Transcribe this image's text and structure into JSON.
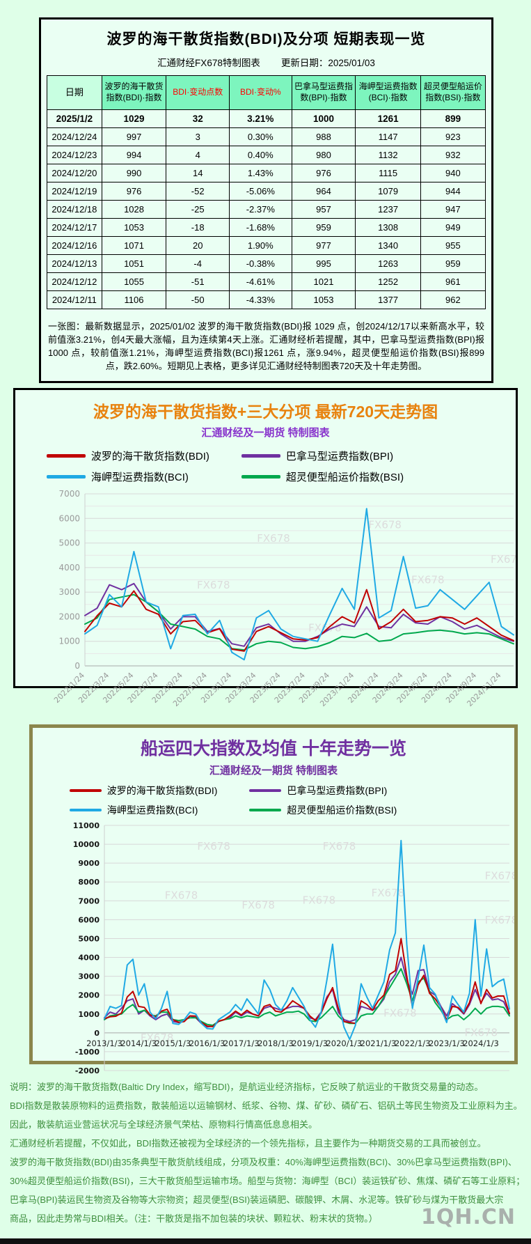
{
  "app": {
    "brand_watermark": "1QH.CN",
    "chart_watermark": "FX678"
  },
  "panel1": {
    "title": "波罗的海干散货指数(BDI)及分项 短期表现一览",
    "source": "汇通财经FX678特制图表",
    "update_label": "更新日期：2025/01/03",
    "table": {
      "headers": [
        "日期",
        "波罗的海干散货指数(BDI)·指数",
        "BDI·变动点数",
        "BDI·变动%",
        "巴拿马型运费指数(BPI)·指数",
        "海岬型运费指数(BCI)·指数",
        "超灵便型船运价指数(BSI)·指数"
      ],
      "rows": [
        [
          "2025/1/2",
          "1029",
          "32",
          "3.21%",
          "1000",
          "1261",
          "899"
        ],
        [
          "2024/12/24",
          "997",
          "3",
          "0.30%",
          "988",
          "1147",
          "923"
        ],
        [
          "2024/12/23",
          "994",
          "4",
          "0.40%",
          "980",
          "1132",
          "932"
        ],
        [
          "2024/12/20",
          "990",
          "14",
          "1.43%",
          "976",
          "1115",
          "940"
        ],
        [
          "2024/12/19",
          "976",
          "-52",
          "-5.06%",
          "964",
          "1079",
          "944"
        ],
        [
          "2024/12/18",
          "1028",
          "-25",
          "-2.37%",
          "957",
          "1237",
          "947"
        ],
        [
          "2024/12/17",
          "1053",
          "-18",
          "-1.68%",
          "959",
          "1308",
          "949"
        ],
        [
          "2024/12/16",
          "1071",
          "20",
          "1.90%",
          "977",
          "1340",
          "955"
        ],
        [
          "2024/12/13",
          "1051",
          "-4",
          "-0.38%",
          "995",
          "1263",
          "959"
        ],
        [
          "2024/12/12",
          "1055",
          "-51",
          "-4.61%",
          "1021",
          "1252",
          "961"
        ],
        [
          "2024/12/11",
          "1106",
          "-50",
          "-4.33%",
          "1053",
          "1377",
          "962"
        ]
      ]
    },
    "summary": "一张图：最新数据显示，2025/01/02 波罗的海干散货指数(BDI)报 1029 点，创2024/12/17以来新高水平，较前值涨3.21%，创4天最大涨幅，且为连续第4天上涨。汇通财经析若提醒，其中，巴拿马型运费指数(BPI)报1000 点，较前值涨1.21%，海岬型运费指数(BCI)报1261 点，涨9.94%，超灵便型船运价指数(BSI)报899 点，跌2.60%。短期见上表格，更多详见汇通财经特制图表720天及十年走势图。"
  },
  "chart_data": [
    {
      "type": "line",
      "title": "波罗的海干散货指数+三大分项  最新720天走势图",
      "subtitle": "汇通财经及一期货 特制图表",
      "ylim": [
        0,
        7000
      ],
      "ytick_step": 1000,
      "grid": true,
      "legend_position": "top",
      "x_labels": [
        "2022/1/24",
        "2022/3/24",
        "2022/5/24",
        "2022/7/24",
        "2022/9/24",
        "2022/11/24",
        "2023/1/24",
        "2023/3/24",
        "2023/5/24",
        "2023/7/24",
        "2023/9/24",
        "2023/11/24",
        "2024/1/24",
        "2024/3/24",
        "2024/5/24",
        "2024/7/24",
        "2024/9/24",
        "2024/11/24"
      ],
      "label_stride": 2,
      "series": [
        {
          "name": "波罗的海干散货指数(BDI)",
          "color": "#c00000",
          "values": [
            1400,
            2040,
            2550,
            2400,
            3050,
            2300,
            2100,
            1300,
            1800,
            1850,
            1350,
            1510,
            680,
            600,
            1400,
            1600,
            1350,
            1100,
            1050,
            1150,
            1600,
            2000,
            1750,
            3100,
            1500,
            1800,
            2300,
            1800,
            1850,
            2000,
            1950,
            1700,
            1950,
            1600,
            1250,
            1029
          ]
        },
        {
          "name": "巴拿马型运费指数(BPI)",
          "color": "#7030a0",
          "values": [
            2050,
            2350,
            3300,
            3100,
            3350,
            2600,
            2200,
            1500,
            2000,
            2000,
            1400,
            1520,
            900,
            800,
            1550,
            1700,
            1300,
            1000,
            1000,
            1200,
            1500,
            1700,
            1600,
            2400,
            1600,
            1550,
            2100,
            1750,
            1700,
            2000,
            1800,
            1500,
            1650,
            1400,
            1150,
            1000
          ]
        },
        {
          "name": "海岬型运费指数(BCI)",
          "color": "#1fa9e4",
          "values": [
            1300,
            1650,
            2900,
            2400,
            4650,
            2600,
            2400,
            700,
            2050,
            2100,
            1300,
            1850,
            550,
            250,
            1950,
            2250,
            1500,
            1200,
            1100,
            1000,
            2100,
            3150,
            2300,
            6400,
            1950,
            2250,
            4450,
            2350,
            2450,
            3100,
            2700,
            2300,
            2850,
            3400,
            1600,
            1261
          ]
        },
        {
          "name": "超灵便型船运价指数(BSI)",
          "color": "#00a84d",
          "values": [
            1700,
            1950,
            2700,
            2800,
            2900,
            2600,
            2200,
            1700,
            1600,
            1500,
            1200,
            1100,
            700,
            650,
            900,
            1000,
            950,
            750,
            700,
            780,
            950,
            1200,
            1150,
            1320,
            1000,
            1050,
            1300,
            1350,
            1420,
            1450,
            1400,
            1300,
            1350,
            1300,
            1100,
            899
          ]
        }
      ]
    },
    {
      "type": "line",
      "title": "船运四大指数及均值 十年走势一览",
      "subtitle": "汇通财经及一期货 特制图表",
      "ylim": [
        -2000,
        11000
      ],
      "ytick_step": 1000,
      "grid": true,
      "legend_position": "top",
      "x_labels": [
        "2013/1/3",
        "2014/1/3",
        "2015/1/3",
        "2016/1/3",
        "2017/1/3",
        "2018/1/3",
        "2019/1/3",
        "2020/1/3",
        "2021/1/3",
        "2022/1/3",
        "2023/1/3",
        "2024/1/3"
      ],
      "label_stride": 6,
      "series": [
        {
          "name": "波罗的海干散货指数(BDI)",
          "color": "#c00000",
          "values": [
            750,
            850,
            880,
            1050,
            1900,
            2200,
            1400,
            1350,
            950,
            850,
            1150,
            1250,
            700,
            560,
            600,
            900,
            890,
            550,
            360,
            330,
            620,
            700,
            900,
            1150,
            950,
            1200,
            1000,
            900,
            1400,
            1500,
            1150,
            1100,
            1350,
            1700,
            1500,
            1300,
            900,
            650,
            1050,
            1800,
            2400,
            1300,
            600,
            550,
            500,
            1700,
            1500,
            1200,
            1700,
            2000,
            3100,
            3300,
            5000,
            3000,
            1400,
            2550,
            3050,
            2100,
            1800,
            1350,
            680,
            1400,
            1350,
            1050,
            1600,
            2700,
            1550,
            2300,
            1850,
            1950,
            1950,
            1029
          ]
        },
        {
          "name": "巴拿马型运费指数(BPI)",
          "color": "#7030a0",
          "values": [
            800,
            1100,
            1000,
            1300,
            1700,
            1800,
            1000,
            1200,
            900,
            700,
            900,
            1000,
            600,
            550,
            620,
            900,
            800,
            500,
            320,
            350,
            600,
            700,
            800,
            1100,
            900,
            1100,
            1000,
            900,
            1300,
            1400,
            1300,
            1200,
            1300,
            1400,
            1400,
            1300,
            800,
            700,
            1100,
            1900,
            2300,
            1100,
            700,
            600,
            700,
            1400,
            1300,
            1200,
            1400,
            1800,
            2700,
            3100,
            4000,
            2800,
            2050,
            3300,
            3350,
            2200,
            2000,
            1400,
            900,
            1550,
            1300,
            1000,
            1500,
            2300,
            1600,
            2100,
            1750,
            1800,
            1650,
            1000
          ]
        },
        {
          "name": "海岬型运费指数(BCI)",
          "color": "#1fa9e4",
          "values": [
            750,
            1400,
            1300,
            1450,
            3600,
            3900,
            2000,
            2600,
            1100,
            750,
            1300,
            2200,
            500,
            450,
            700,
            1100,
            1000,
            500,
            230,
            200,
            700,
            900,
            1100,
            1500,
            1200,
            1800,
            1400,
            1000,
            2800,
            2300,
            1500,
            1200,
            1700,
            2400,
            1900,
            1400,
            700,
            300,
            1100,
            2800,
            4700,
            1700,
            300,
            -350,
            400,
            2600,
            1900,
            1300,
            2000,
            2700,
            4400,
            5300,
            10200,
            4700,
            1300,
            2900,
            4650,
            2400,
            2050,
            1300,
            550,
            1950,
            1500,
            1100,
            2100,
            6000,
            1950,
            4450,
            2450,
            2700,
            2850,
            1261
          ]
        },
        {
          "name": "超灵便型船运价指数(BSI)",
          "color": "#00a84d",
          "values": [
            700,
            900,
            950,
            1000,
            1300,
            1500,
            1100,
            1200,
            950,
            900,
            1100,
            1100,
            700,
            650,
            700,
            800,
            800,
            600,
            450,
            400,
            600,
            700,
            750,
            900,
            800,
            900,
            850,
            800,
            1000,
            1100,
            900,
            1000,
            1100,
            1100,
            1150,
            1000,
            650,
            600,
            800,
            1100,
            1400,
            900,
            600,
            500,
            500,
            900,
            1000,
            1000,
            1400,
            1900,
            2400,
            2900,
            3400,
            2600,
            1700,
            2700,
            2900,
            2200,
            1600,
            1200,
            700,
            900,
            950,
            700,
            950,
            1300,
            1000,
            1300,
            1400,
            1400,
            1350,
            899
          ]
        }
      ]
    }
  ],
  "footnote_lines": [
    "说明：波罗的海干散货指数(Baltic Dry Index，缩写BDI)，是航运业经济指标，它反映了航运业的干散货交易量的动态。",
    "BDI指数是散装原物料的运费指数，散装船运以运输钢材、纸浆、谷物、煤、矿砂、磷矿石、铝矾土等民生物资及工业原料为主。",
    "因此，散装航运业营运状况与全球经济景气荣枯、原物料行情高低息息相关。",
    "汇通财经析若提醒，不仅如此，BDI指数还被视为全球经济的一个领先指标，且主要作为一种期货交易的工具而被创立。",
    "波罗的海干散货指数(BDI)由35条典型干散货航线组成，分项及权重：40%海岬型运费指数(BCI)、30%巴拿马型运费指数(BPI)、",
    "30%超灵便型船运价指数(BSI)，三大干散货船型运输市场。船型与货物：海岬型（BCI）装运铁矿砂、焦煤、磷矿石等工业原料；",
    "巴拿马(BPI)装运民生物资及谷物等大宗物资；超灵便型(BSI)装运磷肥、碳酸钾、木屑、水泥等。铁矿砂与煤为干散货最大宗",
    "商品，因此走势常与BDI相关。（注：干散货是指不加包装的块状、颗粒状、粉末状的货物。）"
  ]
}
